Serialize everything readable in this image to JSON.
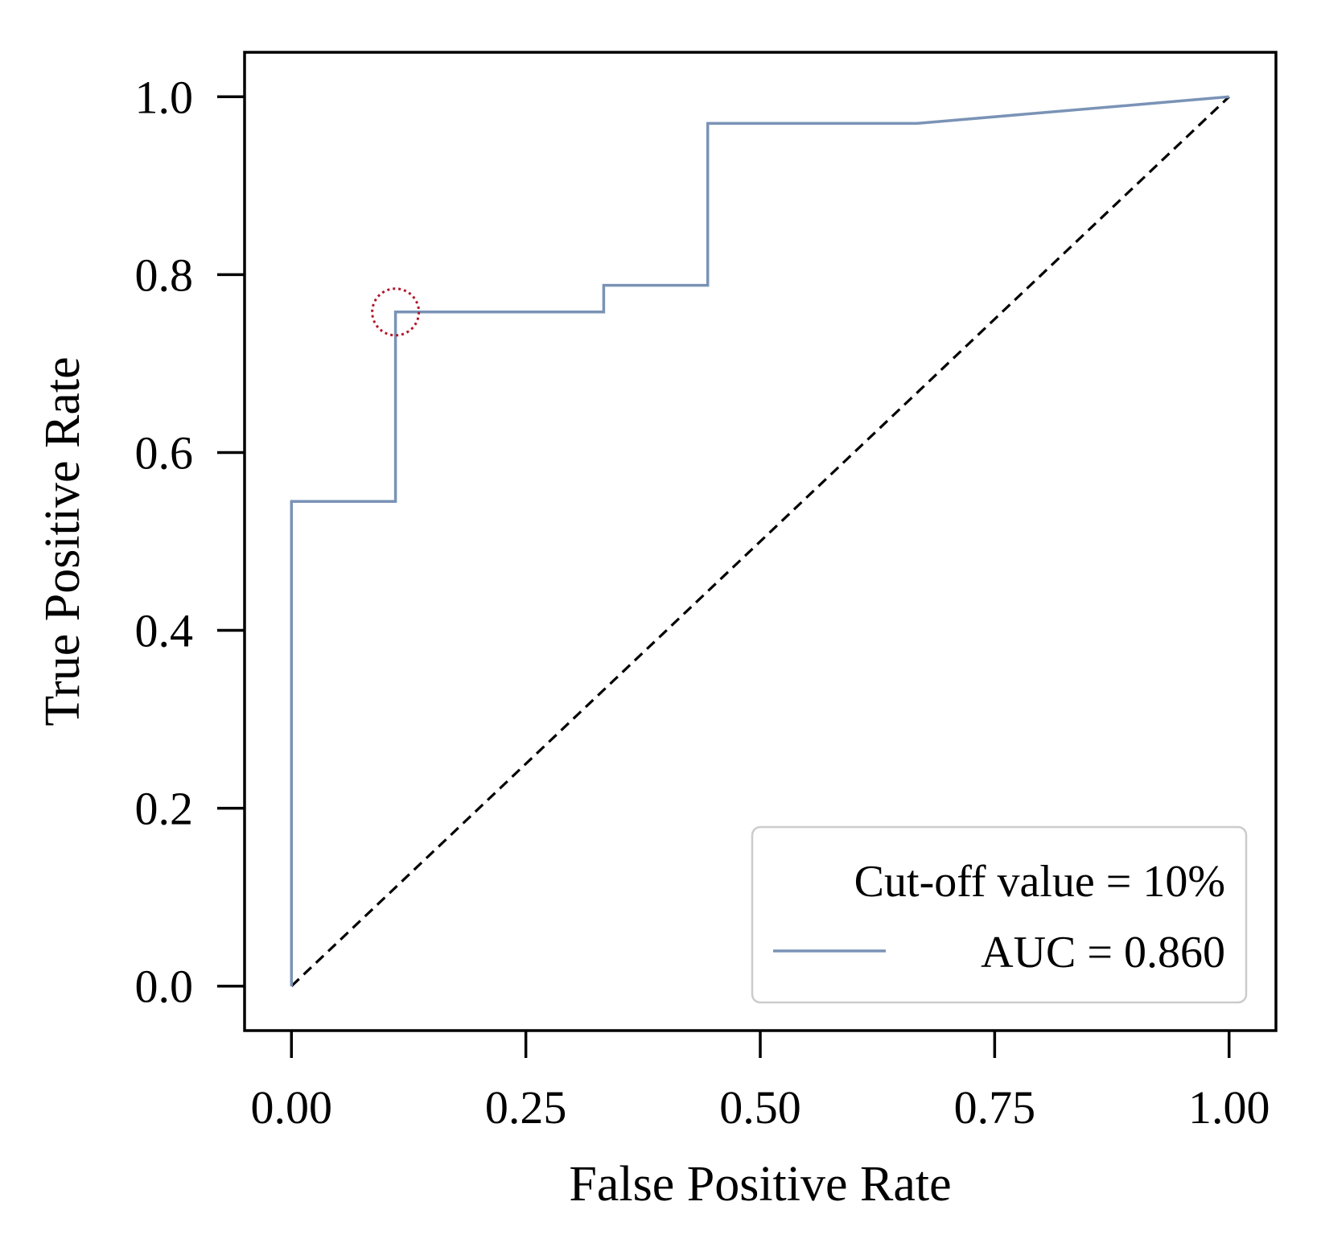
{
  "chart_data": {
    "type": "line",
    "xlabel": "False Positive Rate",
    "ylabel": "True Positive Rate",
    "xlim": [
      -0.05,
      1.05
    ],
    "ylim": [
      -0.05,
      1.05
    ],
    "x_ticks": [
      0.0,
      0.25,
      0.5,
      0.75,
      1.0
    ],
    "x_tick_labels": [
      "0.00",
      "0.25",
      "0.50",
      "0.75",
      "1.00"
    ],
    "y_ticks": [
      0.0,
      0.2,
      0.4,
      0.6,
      0.8,
      1.0
    ],
    "y_tick_labels": [
      "0.0",
      "0.2",
      "0.4",
      "0.6",
      "0.8",
      "1.0"
    ],
    "grid": false,
    "series": [
      {
        "name": "AUC = 0.860",
        "color": "#7a93b6",
        "x": [
          0.0,
          0.0,
          0.111,
          0.111,
          0.333,
          0.333,
          0.444,
          0.444,
          0.667,
          1.0
        ],
        "y": [
          0.0,
          0.545,
          0.545,
          0.758,
          0.758,
          0.788,
          0.788,
          0.97,
          0.97,
          1.0
        ]
      }
    ],
    "reference_line": {
      "x": [
        0.0,
        1.0
      ],
      "y": [
        0.0,
        1.0
      ],
      "style": "dashed",
      "color": "#000000"
    },
    "marker": {
      "x": 0.111,
      "y": 0.758,
      "style": "dotted circle",
      "color": "#b2182b"
    },
    "legend": {
      "title": "Cut-off value = 10%",
      "placement": "lower-right"
    }
  }
}
